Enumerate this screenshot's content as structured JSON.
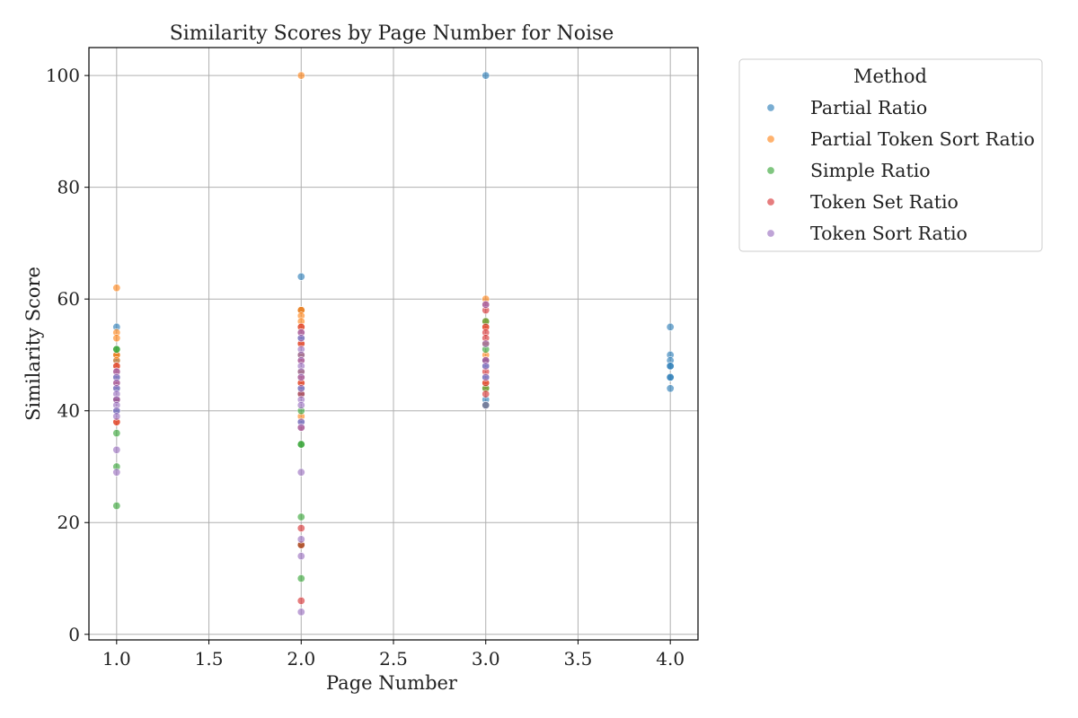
{
  "chart_data": {
    "type": "scatter",
    "title": "Similarity Scores by Page Number for Noise",
    "xlabel": "Page Number",
    "ylabel": "Similarity Score",
    "xlim": [
      0.85,
      4.15
    ],
    "ylim": [
      -1,
      105
    ],
    "xticks": [
      "1.0",
      "1.5",
      "2.0",
      "2.5",
      "3.0",
      "3.5",
      "4.0"
    ],
    "yticks": [
      "0",
      "20",
      "40",
      "60",
      "80",
      "100"
    ],
    "grid": true,
    "legend": {
      "title": "Method",
      "placement": "outside-upper-right"
    },
    "series": [
      {
        "name": "Partial Ratio",
        "color": "#1f77b4",
        "points": [
          [
            1,
            55
          ],
          [
            1,
            50
          ],
          [
            1,
            49
          ],
          [
            1,
            46
          ],
          [
            1,
            44
          ],
          [
            1,
            42
          ],
          [
            1,
            40
          ],
          [
            2,
            64
          ],
          [
            2,
            58
          ],
          [
            2,
            53
          ],
          [
            2,
            50
          ],
          [
            2,
            47
          ],
          [
            2,
            44
          ],
          [
            2,
            43
          ],
          [
            2,
            38
          ],
          [
            3,
            100
          ],
          [
            3,
            52
          ],
          [
            3,
            49
          ],
          [
            3,
            48
          ],
          [
            3,
            46
          ],
          [
            3,
            42
          ],
          [
            3,
            41
          ],
          [
            4,
            55
          ],
          [
            4,
            50
          ],
          [
            4,
            49
          ],
          [
            4,
            48
          ],
          [
            4,
            48
          ],
          [
            4,
            46
          ],
          [
            4,
            46
          ],
          [
            4,
            44
          ]
        ]
      },
      {
        "name": "Partial Token Sort Ratio",
        "color": "#ff7f0e",
        "points": [
          [
            1,
            62
          ],
          [
            1,
            54
          ],
          [
            1,
            53
          ],
          [
            1,
            50
          ],
          [
            1,
            50
          ],
          [
            1,
            49
          ],
          [
            1,
            48
          ],
          [
            1,
            38
          ],
          [
            2,
            100
          ],
          [
            2,
            58
          ],
          [
            2,
            58
          ],
          [
            2,
            57
          ],
          [
            2,
            56
          ],
          [
            2,
            55
          ],
          [
            2,
            52
          ],
          [
            2,
            50
          ],
          [
            2,
            47
          ],
          [
            2,
            45
          ],
          [
            2,
            39
          ],
          [
            2,
            16
          ],
          [
            3,
            60
          ],
          [
            3,
            56
          ],
          [
            3,
            55
          ],
          [
            3,
            52
          ],
          [
            3,
            50
          ],
          [
            3,
            45
          ],
          [
            3,
            44
          ]
        ]
      },
      {
        "name": "Simple Ratio",
        "color": "#2ca02c",
        "points": [
          [
            1,
            51
          ],
          [
            1,
            51
          ],
          [
            1,
            36
          ],
          [
            1,
            30
          ],
          [
            1,
            23
          ],
          [
            2,
            40
          ],
          [
            2,
            34
          ],
          [
            2,
            34
          ],
          [
            2,
            21
          ],
          [
            2,
            10
          ],
          [
            2,
            16
          ],
          [
            3,
            56
          ],
          [
            3,
            51
          ],
          [
            3,
            44
          ],
          [
            3,
            41
          ]
        ]
      },
      {
        "name": "Token Set Ratio",
        "color": "#d62728",
        "points": [
          [
            1,
            48
          ],
          [
            1,
            47
          ],
          [
            1,
            45
          ],
          [
            1,
            42
          ],
          [
            1,
            38
          ],
          [
            2,
            55
          ],
          [
            2,
            54
          ],
          [
            2,
            52
          ],
          [
            2,
            49
          ],
          [
            2,
            46
          ],
          [
            2,
            45
          ],
          [
            2,
            43
          ],
          [
            2,
            37
          ],
          [
            2,
            19
          ],
          [
            2,
            6
          ],
          [
            2,
            16
          ],
          [
            3,
            59
          ],
          [
            3,
            58
          ],
          [
            3,
            55
          ],
          [
            3,
            54
          ],
          [
            3,
            53
          ],
          [
            3,
            49
          ],
          [
            3,
            47
          ],
          [
            3,
            45
          ],
          [
            3,
            43
          ]
        ]
      },
      {
        "name": "Token Sort Ratio",
        "color": "#9467bd",
        "points": [
          [
            1,
            47
          ],
          [
            1,
            46
          ],
          [
            1,
            45
          ],
          [
            1,
            44
          ],
          [
            1,
            43
          ],
          [
            1,
            42
          ],
          [
            1,
            41
          ],
          [
            1,
            40
          ],
          [
            1,
            39
          ],
          [
            1,
            33
          ],
          [
            1,
            29
          ],
          [
            2,
            54
          ],
          [
            2,
            53
          ],
          [
            2,
            51
          ],
          [
            2,
            50
          ],
          [
            2,
            49
          ],
          [
            2,
            48
          ],
          [
            2,
            47
          ],
          [
            2,
            46
          ],
          [
            2,
            44
          ],
          [
            2,
            42
          ],
          [
            2,
            41
          ],
          [
            2,
            38
          ],
          [
            2,
            37
          ],
          [
            2,
            29
          ],
          [
            2,
            17
          ],
          [
            2,
            14
          ],
          [
            2,
            4
          ],
          [
            3,
            59
          ],
          [
            3,
            52
          ],
          [
            3,
            49
          ],
          [
            3,
            48
          ],
          [
            3,
            46
          ],
          [
            3,
            41
          ]
        ]
      }
    ]
  }
}
